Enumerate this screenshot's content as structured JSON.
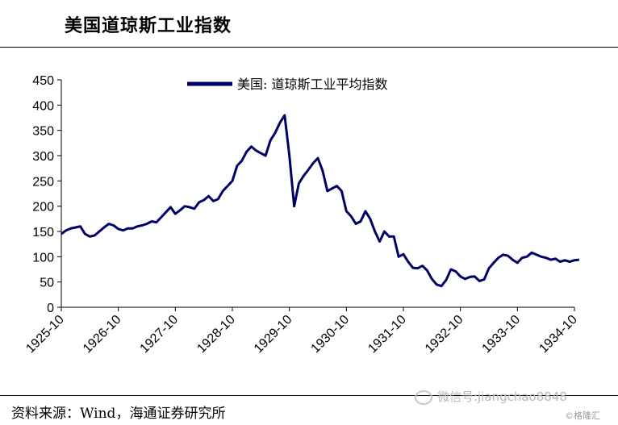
{
  "header": {
    "title": "美国道琼斯工业指数"
  },
  "footer": {
    "source": "资料来源：Wind，海通证券研究所",
    "watermark": "微信号:jiangchao8848",
    "brand": "©格隆汇"
  },
  "colors": {
    "series": "#000066"
  },
  "chart_data": {
    "type": "line",
    "title": "",
    "xlabel": "",
    "ylabel": "",
    "ylim": [
      0,
      450
    ],
    "yticks": [
      0,
      50,
      100,
      150,
      200,
      250,
      300,
      350,
      400,
      450
    ],
    "xlim": [
      "1925-10",
      "1934-10"
    ],
    "xticks": [
      "1925-10",
      "1926-10",
      "1927-10",
      "1928-10",
      "1929-10",
      "1930-10",
      "1931-10",
      "1932-10",
      "1933-10",
      "1934-10"
    ],
    "grid": false,
    "legend": "top-center",
    "series": [
      {
        "name": "美国: 道琼斯工业平均指数",
        "color": "#000066",
        "points": [
          [
            "1925-10",
            145
          ],
          [
            "1925-11",
            152
          ],
          [
            "1925-12",
            156
          ],
          [
            "1926-01",
            158
          ],
          [
            "1926-02",
            160
          ],
          [
            "1926-03",
            145
          ],
          [
            "1926-04",
            140
          ],
          [
            "1926-05",
            142
          ],
          [
            "1926-06",
            150
          ],
          [
            "1926-07",
            158
          ],
          [
            "1926-08",
            165
          ],
          [
            "1926-09",
            162
          ],
          [
            "1926-10",
            155
          ],
          [
            "1926-11",
            152
          ],
          [
            "1926-12",
            156
          ],
          [
            "1927-01",
            156
          ],
          [
            "1927-02",
            160
          ],
          [
            "1927-03",
            162
          ],
          [
            "1927-04",
            165
          ],
          [
            "1927-05",
            170
          ],
          [
            "1927-06",
            168
          ],
          [
            "1927-07",
            178
          ],
          [
            "1927-08",
            188
          ],
          [
            "1927-09",
            198
          ],
          [
            "1927-10",
            185
          ],
          [
            "1927-11",
            192
          ],
          [
            "1927-12",
            200
          ],
          [
            "1928-01",
            198
          ],
          [
            "1928-02",
            195
          ],
          [
            "1928-03",
            208
          ],
          [
            "1928-04",
            212
          ],
          [
            "1928-05",
            220
          ],
          [
            "1928-06",
            210
          ],
          [
            "1928-07",
            214
          ],
          [
            "1928-08",
            230
          ],
          [
            "1928-09",
            240
          ],
          [
            "1928-10",
            250
          ],
          [
            "1928-11",
            280
          ],
          [
            "1928-12",
            290
          ],
          [
            "1929-01",
            308
          ],
          [
            "1929-02",
            318
          ],
          [
            "1929-03",
            310
          ],
          [
            "1929-04",
            305
          ],
          [
            "1929-05",
            300
          ],
          [
            "1929-06",
            330
          ],
          [
            "1929-07",
            345
          ],
          [
            "1929-08",
            365
          ],
          [
            "1929-09",
            380
          ],
          [
            "1929-10",
            300
          ],
          [
            "1929-11",
            200
          ],
          [
            "1929-12",
            245
          ],
          [
            "1930-01",
            260
          ],
          [
            "1930-02",
            272
          ],
          [
            "1930-03",
            285
          ],
          [
            "1930-04",
            295
          ],
          [
            "1930-05",
            270
          ],
          [
            "1930-06",
            230
          ],
          [
            "1930-07",
            235
          ],
          [
            "1930-08",
            240
          ],
          [
            "1930-09",
            230
          ],
          [
            "1930-10",
            190
          ],
          [
            "1930-11",
            180
          ],
          [
            "1930-12",
            165
          ],
          [
            "1931-01",
            170
          ],
          [
            "1931-02",
            190
          ],
          [
            "1931-03",
            175
          ],
          [
            "1931-04",
            150
          ],
          [
            "1931-05",
            130
          ],
          [
            "1931-06",
            150
          ],
          [
            "1931-07",
            140
          ],
          [
            "1931-08",
            140
          ],
          [
            "1931-09",
            100
          ],
          [
            "1931-10",
            105
          ],
          [
            "1931-11",
            90
          ],
          [
            "1931-12",
            78
          ],
          [
            "1932-01",
            77
          ],
          [
            "1932-02",
            82
          ],
          [
            "1932-03",
            73
          ],
          [
            "1932-04",
            56
          ],
          [
            "1932-05",
            45
          ],
          [
            "1932-06",
            42
          ],
          [
            "1932-07",
            54
          ],
          [
            "1932-08",
            75
          ],
          [
            "1932-09",
            71
          ],
          [
            "1932-10",
            61
          ],
          [
            "1932-11",
            56
          ],
          [
            "1932-12",
            60
          ],
          [
            "1933-01",
            61
          ],
          [
            "1933-02",
            52
          ],
          [
            "1933-03",
            55
          ],
          [
            "1933-04",
            77
          ],
          [
            "1933-05",
            88
          ],
          [
            "1933-06",
            98
          ],
          [
            "1933-07",
            104
          ],
          [
            "1933-08",
            102
          ],
          [
            "1933-09",
            94
          ],
          [
            "1933-10",
            88
          ],
          [
            "1933-11",
            98
          ],
          [
            "1933-12",
            100
          ],
          [
            "1934-01",
            108
          ],
          [
            "1934-02",
            104
          ],
          [
            "1934-03",
            100
          ],
          [
            "1934-04",
            98
          ],
          [
            "1934-05",
            94
          ],
          [
            "1934-06",
            96
          ],
          [
            "1934-07",
            90
          ],
          [
            "1934-08",
            93
          ],
          [
            "1934-09",
            90
          ],
          [
            "1934-10",
            93
          ],
          [
            "1934-11",
            94
          ]
        ]
      }
    ]
  }
}
